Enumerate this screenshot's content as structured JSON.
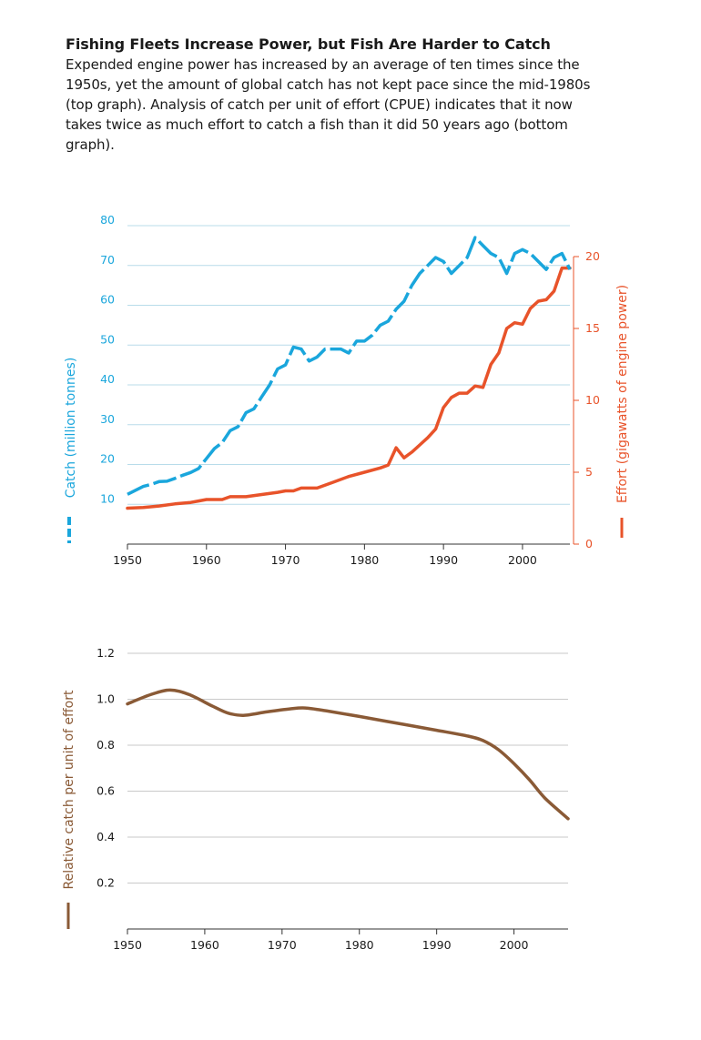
{
  "header": {
    "title": "Fishing Fleets Increase Power, but Fish Are Harder to Catch",
    "description": "Expended engine power has increased by an average of ten times since the 1950s, yet the amount of global catch has not kept pace since the mid-1980s (top graph). Analysis of catch per unit of effort (CPUE) indicates that it now takes twice as much effort to catch a fish than it did 50 years ago (bottom graph)."
  },
  "colors": {
    "catch": "#1aa6dc",
    "effort": "#e8532a",
    "cpue": "#8a5a36",
    "grid": "#b8dcea",
    "axis": "#333333"
  },
  "chart_data": [
    {
      "type": "line",
      "title": "",
      "xlabel": "",
      "ylabel": "Catch (million tonnes)",
      "y2label": "Effort (gigawatts of engine power)",
      "xlim": [
        1950,
        2006
      ],
      "ylim": [
        0,
        80
      ],
      "y2lim": [
        0,
        20
      ],
      "x_ticks": [
        "1950",
        "1960",
        "1970",
        "1980",
        "1990",
        "2000"
      ],
      "y_ticks": [
        "10",
        "20",
        "30",
        "40",
        "50",
        "60",
        "70",
        "80"
      ],
      "y2_ticks": [
        "0",
        "5",
        "10",
        "15",
        "20"
      ],
      "legend": {
        "catch_symbol": "╏",
        "effort_symbol": "│"
      },
      "series": [
        {
          "key": "catch",
          "style": "dashed",
          "axis": "left",
          "points": [
            [
              1950,
              12.5
            ],
            [
              1951,
              13.5
            ],
            [
              1952,
              14.5
            ],
            [
              1953,
              15
            ],
            [
              1954,
              15.7
            ],
            [
              1955,
              15.8
            ],
            [
              1956,
              16.5
            ],
            [
              1957,
              17.3
            ],
            [
              1958,
              18
            ],
            [
              1959,
              19
            ],
            [
              1960,
              21.5
            ],
            [
              1961,
              24
            ],
            [
              1962,
              25.5
            ],
            [
              1963,
              28.5
            ],
            [
              1964,
              29.5
            ],
            [
              1965,
              33
            ],
            [
              1966,
              34
            ],
            [
              1967,
              37
            ],
            [
              1968,
              40
            ],
            [
              1969,
              44
            ],
            [
              1970,
              45
            ],
            [
              1971,
              49.5
            ],
            [
              1972,
              49
            ],
            [
              1973,
              46
            ],
            [
              1974,
              47
            ],
            [
              1975,
              49
            ],
            [
              1976,
              49
            ],
            [
              1977,
              49
            ],
            [
              1978,
              48
            ],
            [
              1979,
              51
            ],
            [
              1980,
              51
            ],
            [
              1981,
              52.5
            ],
            [
              1982,
              55
            ],
            [
              1983,
              56
            ],
            [
              1984,
              59
            ],
            [
              1985,
              61
            ],
            [
              1986,
              65
            ],
            [
              1987,
              68
            ],
            [
              1988,
              70
            ],
            [
              1989,
              72
            ],
            [
              1990,
              71
            ],
            [
              1991,
              68
            ],
            [
              1992,
              70
            ],
            [
              1993,
              72
            ],
            [
              1994,
              77
            ],
            [
              1995,
              75
            ],
            [
              1996,
              73
            ],
            [
              1997,
              72
            ],
            [
              1998,
              68
            ],
            [
              1999,
              73
            ],
            [
              2000,
              74
            ],
            [
              2001,
              73
            ],
            [
              2002,
              71
            ],
            [
              2003,
              69
            ],
            [
              2004,
              72
            ],
            [
              2005,
              73
            ],
            [
              2006,
              69
            ]
          ]
        },
        {
          "key": "effort",
          "style": "solid",
          "axis": "right",
          "points": [
            [
              1950,
              2.5
            ],
            [
              1952,
              2.55
            ],
            [
              1954,
              2.65
            ],
            [
              1956,
              2.8
            ],
            [
              1958,
              2.9
            ],
            [
              1959,
              3.0
            ],
            [
              1960,
              3.1
            ],
            [
              1962,
              3.1
            ],
            [
              1963,
              3.3
            ],
            [
              1965,
              3.3
            ],
            [
              1967,
              3.45
            ],
            [
              1969,
              3.6
            ],
            [
              1970,
              3.7
            ],
            [
              1971,
              3.7
            ],
            [
              1972,
              3.9
            ],
            [
              1974,
              3.9
            ],
            [
              1976,
              4.3
            ],
            [
              1978,
              4.7
            ],
            [
              1980,
              5.0
            ],
            [
              1982,
              5.3
            ],
            [
              1983,
              5.5
            ],
            [
              1984,
              6.7
            ],
            [
              1985,
              6.0
            ],
            [
              1986,
              6.4
            ],
            [
              1987,
              6.9
            ],
            [
              1988,
              7.4
            ],
            [
              1989,
              8.0
            ],
            [
              1990,
              9.5
            ],
            [
              1991,
              10.2
            ],
            [
              1992,
              10.5
            ],
            [
              1993,
              10.5
            ],
            [
              1994,
              11.0
            ],
            [
              1995,
              10.9
            ],
            [
              1996,
              12.5
            ],
            [
              1997,
              13.3
            ],
            [
              1998,
              15.0
            ],
            [
              1999,
              15.4
            ],
            [
              2000,
              15.3
            ],
            [
              2001,
              16.4
            ],
            [
              2002,
              16.9
            ],
            [
              2003,
              17.0
            ],
            [
              2004,
              17.6
            ],
            [
              2005,
              19.2
            ],
            [
              2006,
              19.2
            ]
          ]
        }
      ]
    },
    {
      "type": "line",
      "title": "",
      "xlabel": "",
      "ylabel": "Relative catch per unit of effort",
      "xlim": [
        1950,
        2007
      ],
      "ylim": [
        0,
        1.2
      ],
      "x_ticks": [
        "1950",
        "1960",
        "1970",
        "1980",
        "1990",
        "2000"
      ],
      "y_ticks": [
        "0.2",
        "0.4",
        "0.6",
        "0.8",
        "1.0",
        "1.2"
      ],
      "legend": {
        "cpue_symbol": "│"
      },
      "series": [
        {
          "key": "cpue",
          "style": "solid",
          "points": [
            [
              1950,
              0.98
            ],
            [
              1953,
              1.02
            ],
            [
              1955.5,
              1.04
            ],
            [
              1958,
              1.02
            ],
            [
              1961,
              0.97
            ],
            [
              1963,
              0.94
            ],
            [
              1965,
              0.93
            ],
            [
              1968,
              0.945
            ],
            [
              1971,
              0.958
            ],
            [
              1973,
              0.962
            ],
            [
              1976,
              0.948
            ],
            [
              1980,
              0.925
            ],
            [
              1985,
              0.895
            ],
            [
              1990,
              0.865
            ],
            [
              1994,
              0.84
            ],
            [
              1996,
              0.82
            ],
            [
              1998,
              0.78
            ],
            [
              2000,
              0.72
            ],
            [
              2002,
              0.65
            ],
            [
              2004,
              0.57
            ],
            [
              2007,
              0.48
            ]
          ]
        }
      ]
    }
  ]
}
